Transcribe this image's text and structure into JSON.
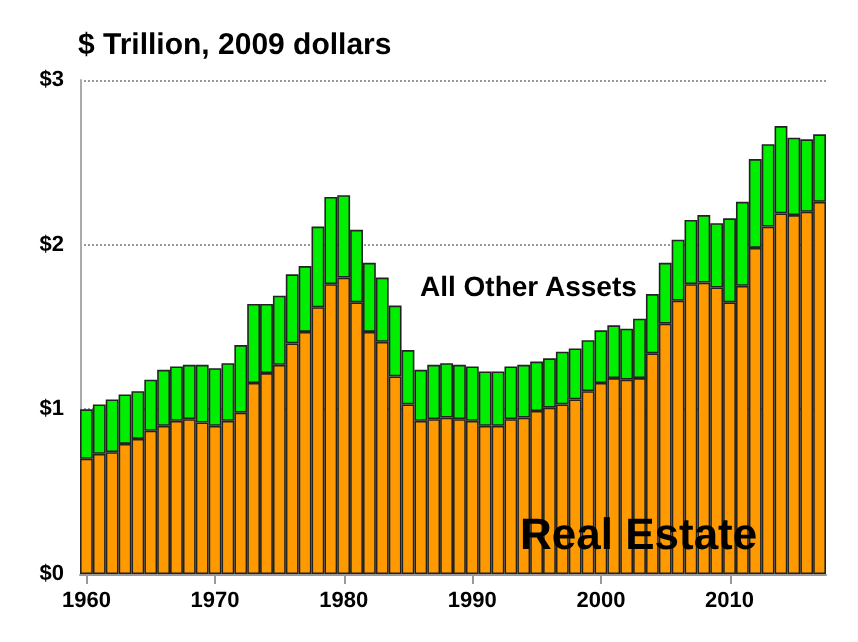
{
  "chart_data": {
    "type": "bar",
    "title": "$ Trillion, 2009 dollars",
    "stacked": true,
    "categories": [
      "1960",
      null,
      null,
      null,
      null,
      null,
      null,
      null,
      null,
      null,
      "1970",
      null,
      null,
      null,
      null,
      null,
      null,
      null,
      null,
      null,
      "1980",
      null,
      null,
      null,
      null,
      null,
      null,
      null,
      null,
      null,
      "1990",
      null,
      null,
      null,
      null,
      null,
      null,
      null,
      null,
      null,
      "2000",
      null,
      null,
      null,
      null,
      null,
      null,
      null,
      null,
      null,
      "2010",
      null,
      null,
      null,
      null,
      null,
      null,
      null
    ],
    "series": [
      {
        "name": "Real Estate",
        "color": "#ff9900",
        "values": [
          0.7,
          0.73,
          0.74,
          0.79,
          0.82,
          0.87,
          0.9,
          0.93,
          0.94,
          0.92,
          0.9,
          0.93,
          0.98,
          1.16,
          1.22,
          1.27,
          1.4,
          1.47,
          1.62,
          1.76,
          1.8,
          1.65,
          1.47,
          1.41,
          1.2,
          1.03,
          0.93,
          0.94,
          0.95,
          0.94,
          0.93,
          0.9,
          0.9,
          0.94,
          0.95,
          0.99,
          1.01,
          1.03,
          1.06,
          1.11,
          1.16,
          1.19,
          1.18,
          1.19,
          1.34,
          1.52,
          1.66,
          1.76,
          1.77,
          1.74,
          1.65,
          1.75,
          1.98,
          2.11,
          2.19,
          2.18,
          2.2,
          2.26
        ]
      },
      {
        "name": "All Other Assets",
        "color": "#00ee00",
        "values": [
          0.3,
          0.3,
          0.32,
          0.3,
          0.29,
          0.31,
          0.34,
          0.33,
          0.33,
          0.35,
          0.35,
          0.35,
          0.41,
          0.48,
          0.42,
          0.42,
          0.42,
          0.4,
          0.49,
          0.53,
          0.5,
          0.44,
          0.42,
          0.39,
          0.43,
          0.33,
          0.31,
          0.33,
          0.33,
          0.33,
          0.33,
          0.33,
          0.33,
          0.32,
          0.32,
          0.3,
          0.3,
          0.32,
          0.31,
          0.31,
          0.32,
          0.32,
          0.31,
          0.36,
          0.36,
          0.37,
          0.37,
          0.39,
          0.41,
          0.39,
          0.51,
          0.51,
          0.54,
          0.5,
          0.53,
          0.47,
          0.44,
          0.41
        ]
      }
    ],
    "ylim": [
      0,
      3
    ],
    "yticks": [
      {
        "value": 0,
        "label": "$0"
      },
      {
        "value": 1,
        "label": "$1"
      },
      {
        "value": 2,
        "label": "$2"
      },
      {
        "value": 3,
        "label": "$3"
      }
    ],
    "grid": "y",
    "legend": false
  }
}
